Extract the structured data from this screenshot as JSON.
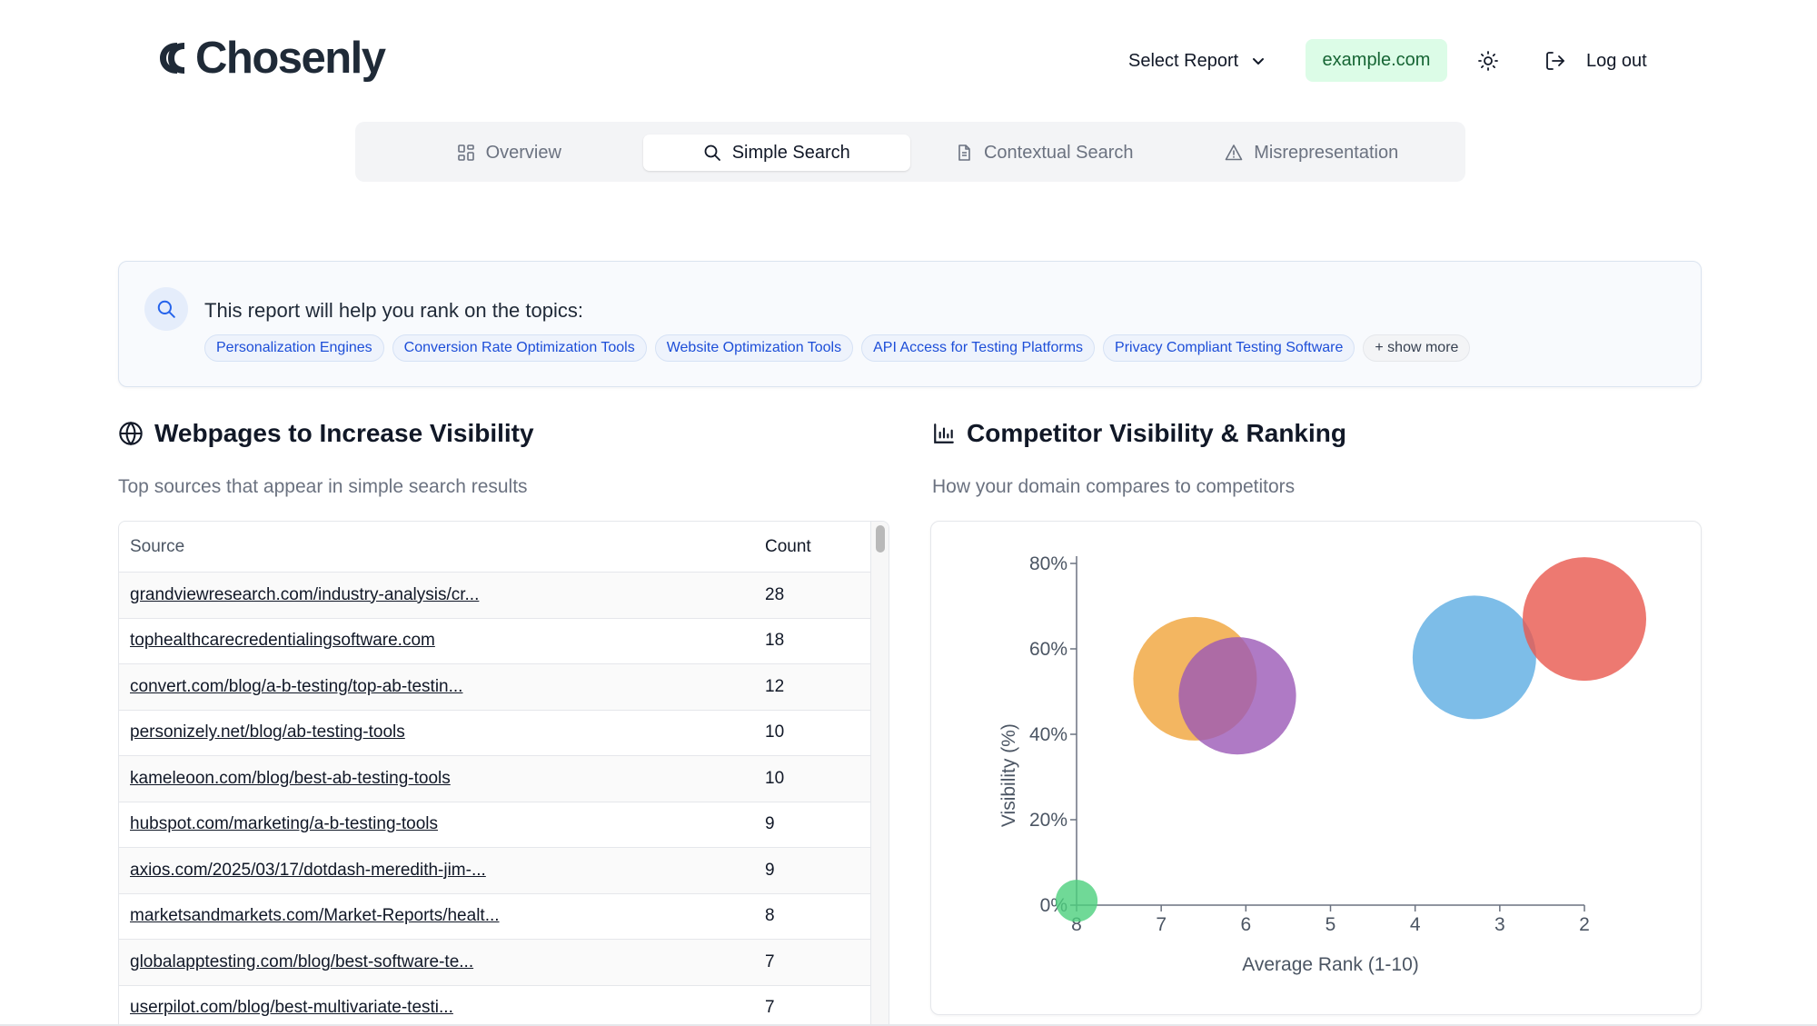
{
  "header": {
    "brand": "Chosenly",
    "select_report": "Select Report",
    "domain": "example.com",
    "logout": "Log out",
    "colors": {
      "brand": "#1f2a37",
      "domain_bg": "#dcfce7",
      "domain_text": "#166534"
    }
  },
  "tabs": [
    {
      "label": "Overview",
      "icon": "grid-icon",
      "active": false
    },
    {
      "label": "Simple Search",
      "icon": "search-icon",
      "active": true
    },
    {
      "label": "Contextual Search",
      "icon": "document-icon",
      "active": false
    },
    {
      "label": "Misrepresentation",
      "icon": "warning-icon",
      "active": false
    }
  ],
  "topics": {
    "title": "This report will help you rank on the topics:",
    "chips": [
      "Personalization Engines",
      "Conversion Rate Optimization Tools",
      "Website Optimization Tools",
      "API Access for Testing Platforms",
      "Privacy Compliant Testing Software"
    ],
    "show_more": "+ show more"
  },
  "webpages": {
    "title": "Webpages to Increase Visibility",
    "subtitle": "Top sources that appear in simple search results",
    "columns": {
      "source": "Source",
      "count": "Count"
    },
    "rows": [
      {
        "source": "grandviewresearch.com/industry-analysis/cr...",
        "count": "28"
      },
      {
        "source": "tophealthcarecredentialingsoftware.com",
        "count": "18"
      },
      {
        "source": "convert.com/blog/a-b-testing/top-ab-testin...",
        "count": "12"
      },
      {
        "source": "personizely.net/blog/ab-testing-tools",
        "count": "10"
      },
      {
        "source": "kameleoon.com/blog/best-ab-testing-tools",
        "count": "10"
      },
      {
        "source": "hubspot.com/marketing/a-b-testing-tools",
        "count": "9"
      },
      {
        "source": "axios.com/2025/03/17/dotdash-meredith-jim-...",
        "count": "9"
      },
      {
        "source": "marketsandmarkets.com/Market-Reports/healt...",
        "count": "8"
      },
      {
        "source": "globalapptesting.com/blog/best-software-te...",
        "count": "7"
      },
      {
        "source": "userpilot.com/blog/best-multivariate-testi...",
        "count": "7"
      }
    ]
  },
  "competitors": {
    "title": "Competitor Visibility & Ranking",
    "subtitle": "How your domain compares to competitors"
  },
  "chart_data": {
    "type": "scatter",
    "xlabel": "Average Rank (1-10)",
    "ylabel": "Visibility (%)",
    "x_reversed": true,
    "xlim": [
      8,
      2
    ],
    "ylim": [
      0,
      80
    ],
    "x_ticks": [
      "8",
      "7",
      "6",
      "5",
      "4",
      "3",
      "2"
    ],
    "y_ticks": [
      "0%",
      "20%",
      "40%",
      "60%",
      "80%"
    ],
    "grid": false,
    "points": [
      {
        "x": 6.6,
        "y": 53,
        "size": 1.0,
        "color": "#f0a43a"
      },
      {
        "x": 6.1,
        "y": 49,
        "size": 0.95,
        "color": "#9b59b6"
      },
      {
        "x": 3.3,
        "y": 58,
        "size": 1.0,
        "color": "#5dade2"
      },
      {
        "x": 2.0,
        "y": 67,
        "size": 1.0,
        "color": "#e8584d"
      },
      {
        "x": 8.0,
        "y": 1,
        "size": 0.34,
        "color": "#4cd07d"
      }
    ]
  }
}
